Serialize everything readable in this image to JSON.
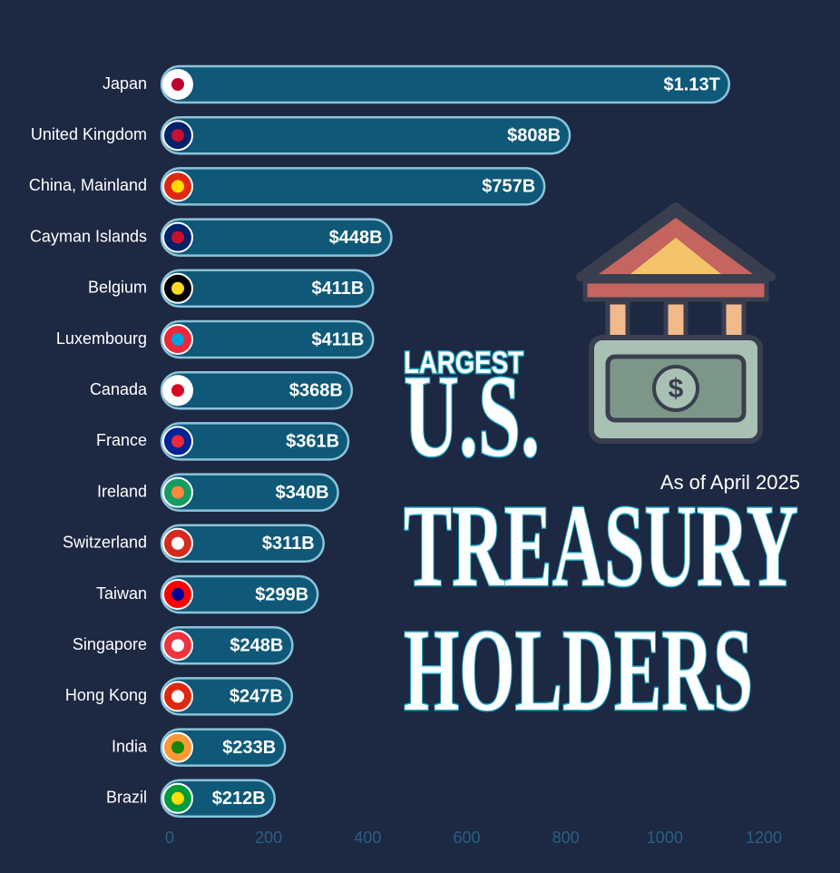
{
  "chart_data": {
    "type": "bar",
    "orientation": "horizontal",
    "title_lines": [
      "LARGEST",
      "U.S.",
      "TREASURY",
      "HOLDERS"
    ],
    "subtitle": "As of April 2025",
    "categories": [
      "Japan",
      "United Kingdom",
      "China, Mainland",
      "Cayman Islands",
      "Belgium",
      "Luxembourg",
      "Canada",
      "France",
      "Ireland",
      "Switzerland",
      "Taiwan",
      "Singapore",
      "Hong Kong",
      "India",
      "Brazil"
    ],
    "values": [
      1130,
      808,
      757,
      448,
      411,
      411,
      368,
      361,
      340,
      311,
      299,
      248,
      247,
      233,
      212
    ],
    "value_labels": [
      "$1.13T",
      "$808B",
      "$757B",
      "$448B",
      "$411B",
      "$411B",
      "$368B",
      "$361B",
      "$340B",
      "$311B",
      "$299B",
      "$248B",
      "$247B",
      "$233B",
      "$212B"
    ],
    "color": "#0f5878",
    "xlim": [
      0,
      1200
    ],
    "xticks": [
      0,
      200,
      400,
      600,
      800,
      1000,
      1200
    ],
    "grid": false
  }
}
